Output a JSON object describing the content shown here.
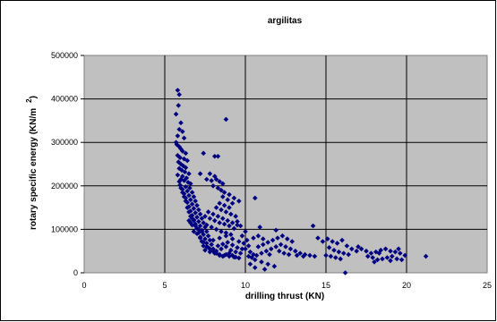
{
  "chart_data": {
    "type": "scatter",
    "title": "argilitas",
    "xlabel": "drilling thrust (KN)",
    "ylabel_main": "rotary specific energy (KN/m",
    "ylabel_sup": "2",
    "ylabel_close": ")",
    "xlim": [
      0,
      25
    ],
    "ylim": [
      0,
      500000
    ],
    "x_ticks": [
      "0",
      "5",
      "10",
      "15",
      "20",
      "25"
    ],
    "y_ticks": [
      "0",
      "100000",
      "200000",
      "300000",
      "400000",
      "500000"
    ],
    "grid": true,
    "legend": "none",
    "colors": {
      "marker": "#000080",
      "plot_bg": "#c0c0c0",
      "grid": "#000000"
    },
    "points": [
      [
        5.8,
        420000
      ],
      [
        5.9,
        410000
      ],
      [
        5.85,
        385000
      ],
      [
        5.7,
        365000
      ],
      [
        6.0,
        345000
      ],
      [
        5.9,
        330000
      ],
      [
        6.1,
        325000
      ],
      [
        5.8,
        315000
      ],
      [
        6.2,
        310000
      ],
      [
        5.7,
        300000
      ],
      [
        5.75,
        295000
      ],
      [
        5.9,
        290000
      ],
      [
        6.0,
        285000
      ],
      [
        6.1,
        280000
      ],
      [
        6.3,
        275000
      ],
      [
        5.8,
        270000
      ],
      [
        5.95,
        265000
      ],
      [
        6.2,
        262000
      ],
      [
        6.4,
        258000
      ],
      [
        5.85,
        255000
      ],
      [
        6.0,
        250000
      ],
      [
        6.15,
        246000
      ],
      [
        6.3,
        242000
      ],
      [
        5.9,
        240000
      ],
      [
        6.05,
        236000
      ],
      [
        6.25,
        232000
      ],
      [
        6.5,
        228000
      ],
      [
        5.8,
        225000
      ],
      [
        6.1,
        222000
      ],
      [
        6.35,
        218000
      ],
      [
        6.0,
        215000
      ],
      [
        6.2,
        212000
      ],
      [
        6.45,
        208000
      ],
      [
        6.6,
        205000
      ],
      [
        5.95,
        202000
      ],
      [
        6.3,
        198000
      ],
      [
        6.55,
        195000
      ],
      [
        6.1,
        192000
      ],
      [
        6.4,
        188000
      ],
      [
        6.7,
        185000
      ],
      [
        6.2,
        182000
      ],
      [
        6.5,
        178000
      ],
      [
        6.8,
        175000
      ],
      [
        6.3,
        172000
      ],
      [
        6.6,
        168000
      ],
      [
        6.9,
        165000
      ],
      [
        6.4,
        162000
      ],
      [
        6.7,
        158000
      ],
      [
        7.0,
        155000
      ],
      [
        6.5,
        152000
      ],
      [
        6.8,
        148000
      ],
      [
        7.1,
        145000
      ],
      [
        6.6,
        142000
      ],
      [
        6.9,
        138000
      ],
      [
        7.2,
        135000
      ],
      [
        6.7,
        132000
      ],
      [
        7.0,
        128000
      ],
      [
        7.3,
        125000
      ],
      [
        6.8,
        122000
      ],
      [
        7.1,
        118000
      ],
      [
        7.4,
        115000
      ],
      [
        6.9,
        112000
      ],
      [
        7.2,
        108000
      ],
      [
        7.5,
        105000
      ],
      [
        7.0,
        102000
      ],
      [
        7.3,
        98000
      ],
      [
        7.6,
        95000
      ],
      [
        7.1,
        92000
      ],
      [
        7.4,
        88000
      ],
      [
        7.7,
        85000
      ],
      [
        7.2,
        82000
      ],
      [
        7.5,
        78000
      ],
      [
        7.8,
        75000
      ],
      [
        7.3,
        72000
      ],
      [
        7.6,
        68000
      ],
      [
        7.9,
        65000
      ],
      [
        7.4,
        62000
      ],
      [
        7.7,
        58000
      ],
      [
        8.0,
        55000
      ],
      [
        7.5,
        52000
      ],
      [
        7.8,
        48000
      ],
      [
        8.1,
        45000
      ],
      [
        8.4,
        42000
      ],
      [
        8.7,
        40000
      ],
      [
        9.0,
        38000
      ],
      [
        9.3,
        36000
      ],
      [
        9.6,
        34000
      ],
      [
        8.2,
        50000
      ],
      [
        8.5,
        55000
      ],
      [
        8.8,
        60000
      ],
      [
        9.1,
        52000
      ],
      [
        9.4,
        48000
      ],
      [
        9.7,
        45000
      ],
      [
        8.3,
        62000
      ],
      [
        8.6,
        66000
      ],
      [
        8.9,
        70000
      ],
      [
        9.2,
        64000
      ],
      [
        9.5,
        58000
      ],
      [
        9.8,
        55000
      ],
      [
        8.0,
        75000
      ],
      [
        8.4,
        80000
      ],
      [
        8.8,
        85000
      ],
      [
        9.2,
        78000
      ],
      [
        9.6,
        72000
      ],
      [
        7.6,
        110000
      ],
      [
        7.9,
        105000
      ],
      [
        8.2,
        100000
      ],
      [
        8.5,
        95000
      ],
      [
        8.8,
        92000
      ],
      [
        9.1,
        88000
      ],
      [
        7.5,
        130000
      ],
      [
        7.8,
        125000
      ],
      [
        8.1,
        120000
      ],
      [
        8.4,
        115000
      ],
      [
        8.7,
        112000
      ],
      [
        9.0,
        108000
      ],
      [
        9.3,
        102000
      ],
      [
        7.7,
        140000
      ],
      [
        8.0,
        135000
      ],
      [
        8.3,
        130000
      ],
      [
        8.6,
        125000
      ],
      [
        8.9,
        120000
      ],
      [
        9.2,
        115000
      ],
      [
        9.5,
        110000
      ],
      [
        8.2,
        150000
      ],
      [
        8.5,
        145000
      ],
      [
        8.8,
        140000
      ],
      [
        9.1,
        135000
      ],
      [
        9.4,
        130000
      ],
      [
        8.4,
        160000
      ],
      [
        8.7,
        155000
      ],
      [
        9.0,
        150000
      ],
      [
        8.6,
        175000
      ],
      [
        8.9,
        168000
      ],
      [
        9.2,
        160000
      ],
      [
        8.0,
        200000
      ],
      [
        8.3,
        195000
      ],
      [
        8.5,
        190000
      ],
      [
        8.7,
        185000
      ],
      [
        8.2,
        215000
      ],
      [
        8.4,
        210000
      ],
      [
        8.6,
        205000
      ],
      [
        9.0,
        180000
      ],
      [
        9.3,
        172000
      ],
      [
        9.6,
        165000
      ],
      [
        7.2,
        228000
      ],
      [
        7.6,
        215000
      ],
      [
        7.9,
        212000
      ],
      [
        7.4,
        275000
      ],
      [
        8.1,
        268000
      ],
      [
        8.3,
        268000
      ],
      [
        8.8,
        353000
      ],
      [
        7.8,
        228000
      ],
      [
        8.1,
        222000
      ],
      [
        9.5,
        118000
      ],
      [
        9.7,
        108000
      ],
      [
        10.0,
        95000
      ],
      [
        9.8,
        85000
      ],
      [
        10.1,
        75000
      ],
      [
        9.9,
        68000
      ],
      [
        10.2,
        62000
      ],
      [
        10.0,
        55000
      ],
      [
        10.3,
        48000
      ],
      [
        10.5,
        42000
      ],
      [
        10.2,
        38000
      ],
      [
        10.4,
        35000
      ],
      [
        10.7,
        40000
      ],
      [
        11.0,
        45000
      ],
      [
        11.3,
        50000
      ],
      [
        11.6,
        55000
      ],
      [
        11.9,
        60000
      ],
      [
        12.2,
        65000
      ],
      [
        12.5,
        60000
      ],
      [
        12.8,
        55000
      ],
      [
        13.1,
        50000
      ],
      [
        13.4,
        45000
      ],
      [
        13.7,
        42000
      ],
      [
        14.0,
        40000
      ],
      [
        14.3,
        38000
      ],
      [
        10.8,
        60000
      ],
      [
        11.1,
        65000
      ],
      [
        11.4,
        70000
      ],
      [
        11.7,
        75000
      ],
      [
        12.0,
        80000
      ],
      [
        12.3,
        85000
      ],
      [
        12.6,
        78000
      ],
      [
        12.9,
        72000
      ],
      [
        10.5,
        80000
      ],
      [
        10.8,
        85000
      ],
      [
        11.1,
        78000
      ],
      [
        10.6,
        30000
      ],
      [
        11.0,
        25000
      ],
      [
        11.4,
        20000
      ],
      [
        11.8,
        15000
      ],
      [
        10.3,
        20000
      ],
      [
        10.6,
        12000
      ],
      [
        11.2,
        8000
      ],
      [
        10.9,
        105000
      ],
      [
        10.6,
        172000
      ],
      [
        11.9,
        98000
      ],
      [
        14.2,
        108000
      ],
      [
        14.5,
        80000
      ],
      [
        14.8,
        72000
      ],
      [
        15.1,
        78000
      ],
      [
        15.4,
        72000
      ],
      [
        15.7,
        68000
      ],
      [
        16.0,
        75000
      ],
      [
        16.3,
        62000
      ],
      [
        16.6,
        55000
      ],
      [
        16.9,
        50000
      ],
      [
        15.2,
        58000
      ],
      [
        15.5,
        52000
      ],
      [
        15.8,
        48000
      ],
      [
        16.1,
        45000
      ],
      [
        16.4,
        42000
      ],
      [
        15.0,
        40000
      ],
      [
        15.3,
        38000
      ],
      [
        15.6,
        35000
      ],
      [
        15.9,
        32000
      ],
      [
        16.2,
        0
      ],
      [
        17.2,
        55000
      ],
      [
        17.5,
        50000
      ],
      [
        17.8,
        45000
      ],
      [
        18.1,
        48000
      ],
      [
        18.4,
        52000
      ],
      [
        18.7,
        55000
      ],
      [
        19.0,
        50000
      ],
      [
        19.3,
        48000
      ],
      [
        19.6,
        45000
      ],
      [
        19.9,
        40000
      ],
      [
        17.6,
        38000
      ],
      [
        17.9,
        35000
      ],
      [
        18.2,
        30000
      ],
      [
        18.5,
        32000
      ],
      [
        18.8,
        35000
      ],
      [
        19.1,
        38000
      ],
      [
        19.4,
        32000
      ],
      [
        19.7,
        30000
      ],
      [
        18.0,
        25000
      ],
      [
        19.0,
        28000
      ],
      [
        21.2,
        38000
      ],
      [
        19.5,
        55000
      ],
      [
        18.3,
        45000
      ],
      [
        17.0,
        60000
      ],
      [
        13.2,
        40000
      ],
      [
        13.6,
        38000
      ],
      [
        12.7,
        42000
      ],
      [
        12.4,
        45000
      ],
      [
        12.1,
        50000
      ],
      [
        11.5,
        42000
      ],
      [
        7.1,
        100000
      ],
      [
        7.3,
        95000
      ],
      [
        6.9,
        108000
      ],
      [
        7.0,
        90000
      ],
      [
        6.8,
        95000
      ],
      [
        6.7,
        110000
      ],
      [
        6.6,
        115000
      ],
      [
        6.5,
        120000
      ],
      [
        7.2,
        80000
      ],
      [
        7.4,
        70000
      ],
      [
        7.6,
        60000
      ],
      [
        7.8,
        55000
      ],
      [
        8.0,
        50000
      ],
      [
        8.2,
        45000
      ],
      [
        8.4,
        40000
      ],
      [
        8.6,
        38000
      ],
      [
        8.8,
        42000
      ],
      [
        9.0,
        45000
      ],
      [
        9.2,
        40000
      ],
      [
        9.4,
        36000
      ],
      [
        6.3,
        165000
      ],
      [
        6.2,
        175000
      ],
      [
        6.1,
        185000
      ],
      [
        6.0,
        195000
      ],
      [
        5.9,
        210000
      ],
      [
        6.4,
        150000
      ],
      [
        6.5,
        140000
      ],
      [
        6.6,
        130000
      ],
      [
        6.7,
        125000
      ],
      [
        6.8,
        120000
      ]
    ]
  }
}
